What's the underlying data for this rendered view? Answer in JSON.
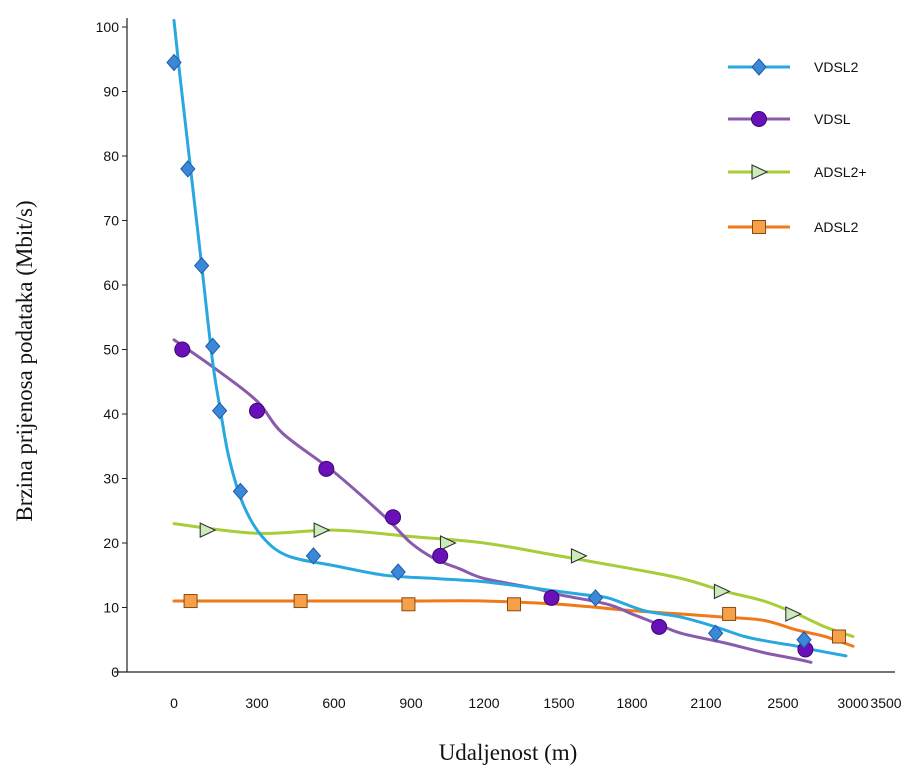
{
  "chart_data": {
    "type": "line",
    "xlabel": "Udaljenost (m)",
    "ylabel": "Brzina prijenosa podataka (Mbit/s)",
    "x_tick_labels": [
      "0",
      "300",
      "600",
      "900",
      "1200",
      "1500",
      "1800",
      "2100",
      "2500",
      "3000",
      "3500"
    ],
    "y_tick_labels": [
      "0",
      "10",
      "20",
      "30",
      "40",
      "50",
      "60",
      "70",
      "80",
      "90",
      "100"
    ],
    "ylim": [
      0,
      100
    ],
    "legend_position": "top-right",
    "series": [
      {
        "name": "VDSL2",
        "color": "#29a8e0",
        "marker": "diamond",
        "marker_color": "#3b87d8",
        "curve": [
          [
            0,
            101
          ],
          [
            20,
            93
          ],
          [
            60,
            78
          ],
          [
            100,
            63
          ],
          [
            140,
            48
          ],
          [
            170,
            40
          ],
          [
            200,
            33
          ],
          [
            250,
            26
          ],
          [
            320,
            21
          ],
          [
            420,
            18
          ],
          [
            600,
            16.5
          ],
          [
            800,
            15
          ],
          [
            1000,
            14.5
          ],
          [
            1200,
            14
          ],
          [
            1400,
            13
          ],
          [
            1600,
            12
          ],
          [
            1700,
            11.5
          ],
          [
            1850,
            9.5
          ],
          [
            2000,
            8.5
          ],
          [
            2150,
            7
          ],
          [
            2300,
            5.5
          ],
          [
            2450,
            4.6
          ],
          [
            2600,
            4
          ],
          [
            2750,
            3.3
          ],
          [
            2950,
            2.5
          ]
        ],
        "points": [
          [
            0,
            94.5
          ],
          [
            50,
            78
          ],
          [
            100,
            63
          ],
          [
            140,
            50.5
          ],
          [
            165,
            40.5
          ],
          [
            240,
            28
          ],
          [
            520,
            18
          ],
          [
            850,
            15.5
          ],
          [
            1650,
            11.5
          ],
          [
            2150,
            6
          ],
          [
            2650,
            5
          ]
        ]
      },
      {
        "name": "VDSL",
        "color": "#8a5aab",
        "marker": "circle",
        "marker_color": "#6a10b8",
        "curve": [
          [
            0,
            51.5
          ],
          [
            150,
            47
          ],
          [
            300,
            42
          ],
          [
            400,
            37
          ],
          [
            600,
            31
          ],
          [
            800,
            24
          ],
          [
            900,
            20
          ],
          [
            1000,
            17.5
          ],
          [
            1100,
            16
          ],
          [
            1200,
            14.5
          ],
          [
            1400,
            13
          ],
          [
            1500,
            12
          ],
          [
            1700,
            10.5
          ],
          [
            1800,
            9
          ],
          [
            1900,
            7.5
          ],
          [
            2000,
            6
          ],
          [
            2200,
            4.5
          ],
          [
            2400,
            3
          ],
          [
            2600,
            2
          ],
          [
            2700,
            1.5
          ]
        ],
        "points": [
          [
            30,
            50
          ],
          [
            300,
            40.5
          ],
          [
            570,
            31.5
          ],
          [
            830,
            24
          ],
          [
            1020,
            18
          ],
          [
            1470,
            11.5
          ],
          [
            1910,
            7
          ],
          [
            2660,
            3.5
          ]
        ]
      },
      {
        "name": "ADSL2+",
        "color": "#a6ce39",
        "marker": "triangle-right",
        "marker_color": "#ccebbb",
        "curve": [
          [
            0,
            23
          ],
          [
            300,
            21.5
          ],
          [
            600,
            22
          ],
          [
            900,
            21
          ],
          [
            1200,
            20
          ],
          [
            1500,
            18
          ],
          [
            1800,
            16
          ],
          [
            2000,
            14.5
          ],
          [
            2200,
            12.5
          ],
          [
            2400,
            11
          ],
          [
            2600,
            9
          ],
          [
            2800,
            7
          ],
          [
            3000,
            5.5
          ]
        ],
        "points": [
          [
            120,
            22
          ],
          [
            550,
            22
          ],
          [
            1050,
            20
          ],
          [
            1580,
            18
          ],
          [
            2180,
            12.5
          ],
          [
            2570,
            9
          ]
        ]
      },
      {
        "name": "ADSL2",
        "color": "#f07a1a",
        "marker": "square",
        "marker_color": "#f7a04a",
        "curve": [
          [
            0,
            11
          ],
          [
            300,
            11
          ],
          [
            600,
            11
          ],
          [
            900,
            11
          ],
          [
            1200,
            11
          ],
          [
            1500,
            10.5
          ],
          [
            1800,
            9.5
          ],
          [
            2000,
            9
          ],
          [
            2200,
            8.5
          ],
          [
            2400,
            8
          ],
          [
            2600,
            6.5
          ],
          [
            2800,
            5.5
          ],
          [
            3000,
            4
          ]
        ],
        "points": [
          [
            60,
            11
          ],
          [
            470,
            11
          ],
          [
            890,
            10.5
          ],
          [
            1320,
            10.5
          ],
          [
            2220,
            9
          ],
          [
            2900,
            5.5
          ]
        ]
      }
    ]
  }
}
